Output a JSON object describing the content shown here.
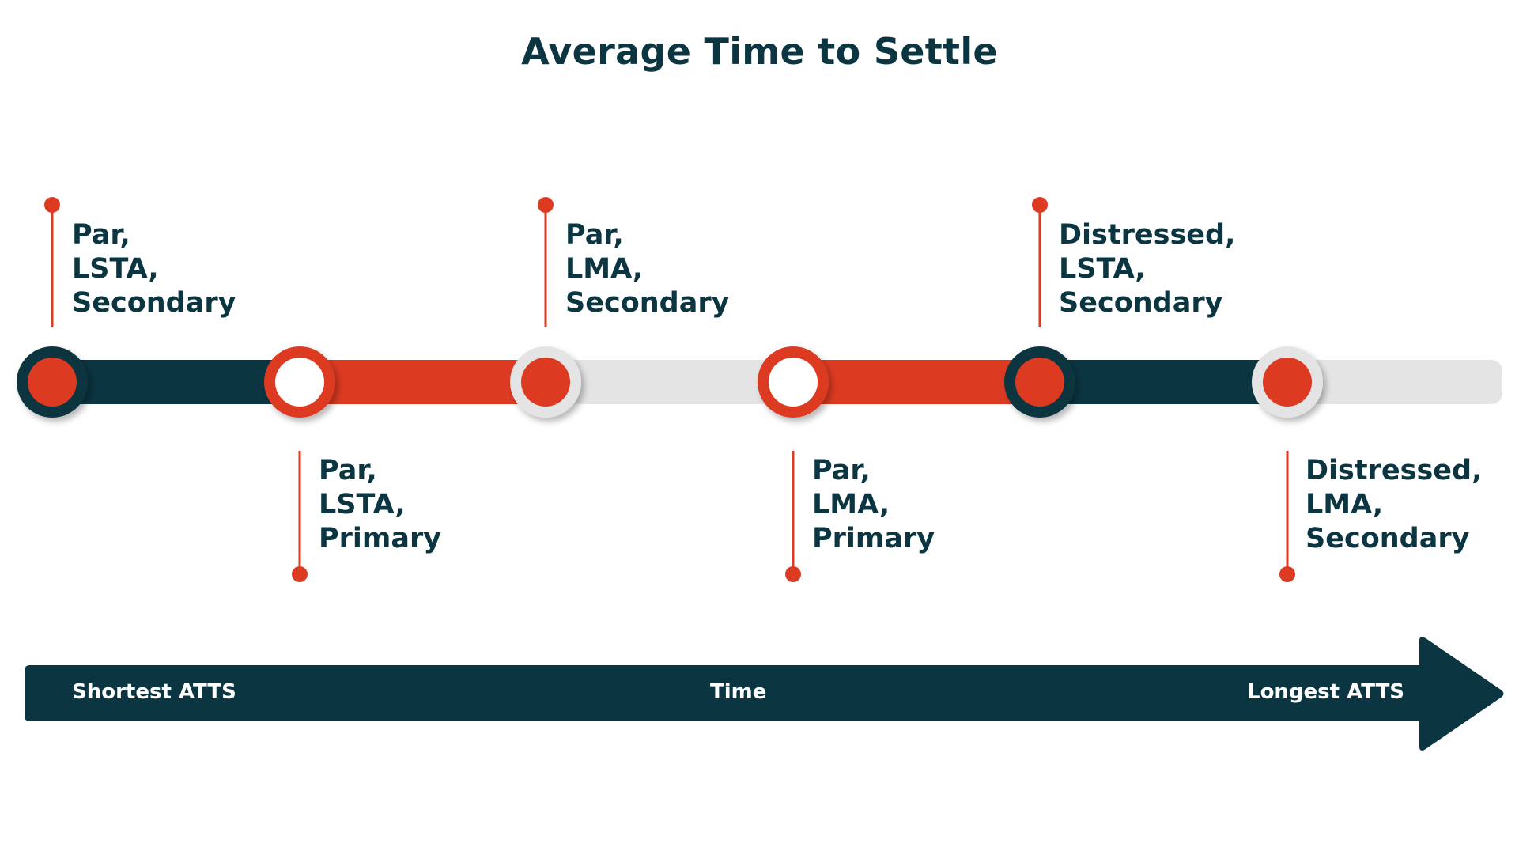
{
  "title": "Average Time to Settle",
  "colors": {
    "navy": "#0b3541",
    "orange": "#dc3b22",
    "gray": "#e4e4e4",
    "white": "#ffffff"
  },
  "milestones": [
    {
      "lines": [
        "Par,",
        "LSTA,",
        "Secondary"
      ],
      "position": "above",
      "node_style": "navy-ring-orange-core",
      "segment_after": "navy"
    },
    {
      "lines": [
        "Par,",
        "LSTA,",
        "Primary"
      ],
      "position": "below",
      "node_style": "orange-ring-white-core",
      "segment_after": "orange"
    },
    {
      "lines": [
        "Par,",
        "LMA,",
        "Secondary"
      ],
      "position": "above",
      "node_style": "gray-ring-orange-core",
      "segment_after": "gray"
    },
    {
      "lines": [
        "Par,",
        "LMA,",
        "Primary"
      ],
      "position": "below",
      "node_style": "orange-ring-white-core",
      "segment_after": "orange"
    },
    {
      "lines": [
        "Distressed,",
        "LSTA,",
        "Secondary"
      ],
      "position": "above",
      "node_style": "navy-ring-orange-core",
      "segment_after": "navy"
    },
    {
      "lines": [
        "Distressed,",
        "LMA,",
        "Secondary"
      ],
      "position": "below",
      "node_style": "gray-ring-orange-core",
      "segment_after": "gray"
    }
  ],
  "axis": {
    "left_label": "Shortest ATTS",
    "center_label": "Time",
    "right_label": "Longest ATTS"
  }
}
